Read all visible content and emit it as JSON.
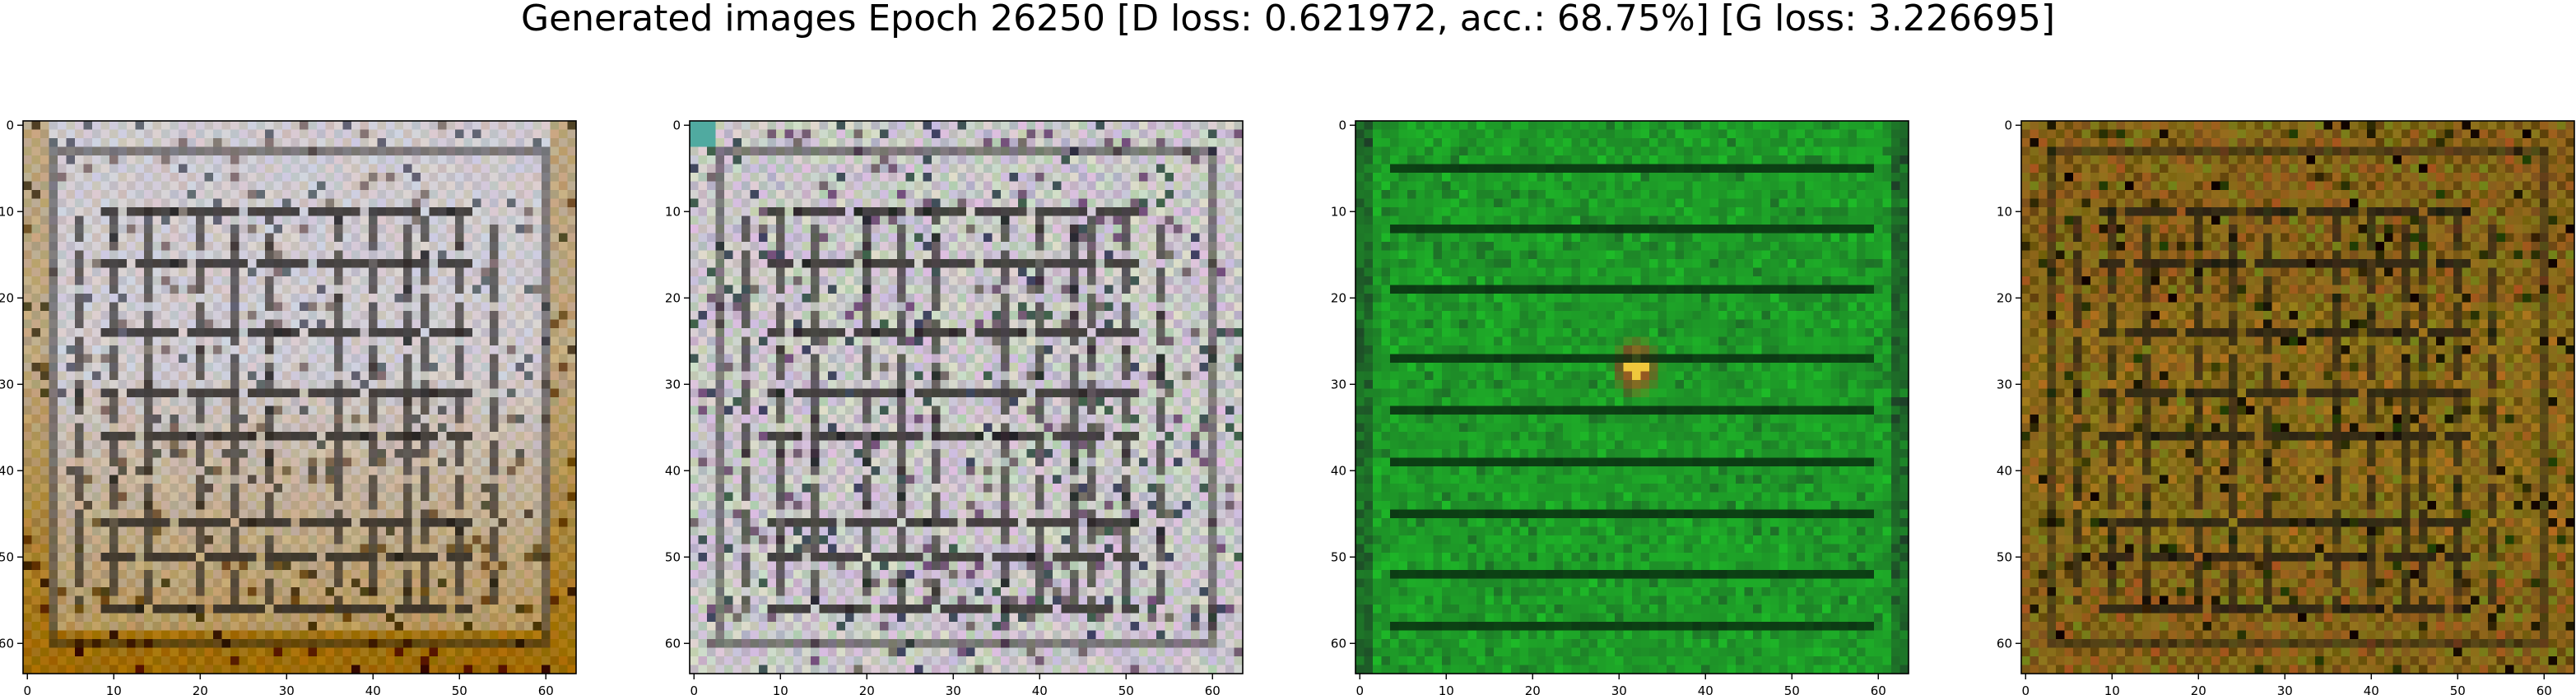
{
  "figure": {
    "title": "Generated images Epoch 26250 [D loss: 0.621972, acc.: 68.75%] [G loss: 3.226695]"
  },
  "axis": {
    "xlim": [
      0,
      63
    ],
    "ylim": [
      63,
      0
    ],
    "x_ticks": [
      0,
      10,
      20,
      30,
      40,
      50,
      60
    ],
    "y_ticks": [
      0,
      10,
      20,
      30,
      40,
      50,
      60
    ],
    "x_tick_labels": [
      "0",
      "10",
      "20",
      "30",
      "40",
      "50",
      "60"
    ],
    "y_tick_labels": [
      "0",
      "10",
      "20",
      "30",
      "40",
      "50",
      "60"
    ]
  },
  "panels": [
    {
      "content": "noisy 64x64 generated image, mostly light grey-lavender with dark vertical and horizontal strokes, brown-orange tinted lower half and edges",
      "colors": {
        "base": "#c8c4c6",
        "accent": "#a07a2a",
        "stroke": "#2a2a2a"
      }
    },
    {
      "content": "noisy 64x64 generated image, light grey with pinkish-green checker noise and dark vertical and horizontal strokes",
      "colors": {
        "base": "#c9c6c8",
        "accent": "#9aa6a0",
        "stroke": "#222222"
      }
    },
    {
      "content": "64x64 generated image, green with dark horizontal stripes and a small red-orange spot near the center",
      "colors": {
        "base": "#1f9a30",
        "accent": "#e02a1a",
        "stroke": "#0a3a12"
      }
    },
    {
      "content": "64x64 generated image, dark golden-brown with dark vertical and horizontal strokes and mottled olive noise",
      "colors": {
        "base": "#8a6a1a",
        "accent": "#b88a2a",
        "stroke": "#2a1a08"
      }
    }
  ]
}
